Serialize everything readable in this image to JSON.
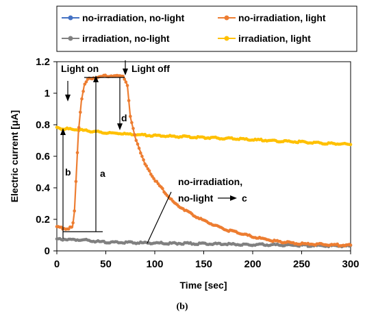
{
  "chart_data": {
    "type": "line",
    "xlabel": "Time [sec]",
    "ylabel": "Electric current [μA]",
    "xlim": [
      0,
      300
    ],
    "ylim": [
      0,
      1.2
    ],
    "x_ticks": [
      "0",
      "50",
      "100",
      "150",
      "200",
      "250",
      "300"
    ],
    "y_ticks": [
      "0",
      "0.2",
      "0.4",
      "0.6",
      "0.8",
      "1",
      "1.2"
    ],
    "grid": false,
    "legend_position": "top",
    "series": [
      {
        "name": "no-irradiation, no-light",
        "color": "#4472c4",
        "points": [
          [
            0,
            0.075
          ],
          [
            300,
            0.035
          ]
        ]
      },
      {
        "name": "no-irradiation, light",
        "color": "#ed7d31",
        "points": [
          [
            0,
            0.15
          ],
          [
            10,
            0.14
          ],
          [
            16,
            0.15
          ],
          [
            18,
            0.25
          ],
          [
            20,
            0.5
          ],
          [
            22,
            0.75
          ],
          [
            25,
            0.95
          ],
          [
            28,
            1.05
          ],
          [
            32,
            1.09
          ],
          [
            40,
            1.1
          ],
          [
            50,
            1.11
          ],
          [
            60,
            1.11
          ],
          [
            68,
            1.11
          ],
          [
            72,
            1.05
          ],
          [
            75,
            0.85
          ],
          [
            80,
            0.72
          ],
          [
            90,
            0.55
          ],
          [
            100,
            0.45
          ],
          [
            120,
            0.3
          ],
          [
            150,
            0.19
          ],
          [
            175,
            0.13
          ],
          [
            200,
            0.09
          ],
          [
            225,
            0.06
          ],
          [
            250,
            0.045
          ],
          [
            275,
            0.04
          ],
          [
            300,
            0.035
          ]
        ]
      },
      {
        "name": "irradiation, no-light",
        "color": "#808080",
        "points": [
          [
            0,
            0.075
          ],
          [
            25,
            0.07
          ],
          [
            50,
            0.055
          ],
          [
            100,
            0.05
          ],
          [
            150,
            0.045
          ],
          [
            200,
            0.04
          ],
          [
            250,
            0.035
          ],
          [
            300,
            0.03
          ]
        ]
      },
      {
        "name": "irradiation, light",
        "color": "#ffc000",
        "points": [
          [
            0,
            0.78
          ],
          [
            25,
            0.765
          ],
          [
            50,
            0.75
          ],
          [
            75,
            0.74
          ],
          [
            100,
            0.73
          ],
          [
            150,
            0.72
          ],
          [
            200,
            0.705
          ],
          [
            250,
            0.69
          ],
          [
            300,
            0.675
          ]
        ]
      }
    ],
    "annotations": {
      "light_on": "Light on",
      "light_off": "Light off",
      "a": "a",
      "b": "b",
      "c": "c",
      "d": "d",
      "no_irr_line1": "no-irradiation,",
      "no_irr_line2": "no-light"
    },
    "caption": "(b)"
  }
}
